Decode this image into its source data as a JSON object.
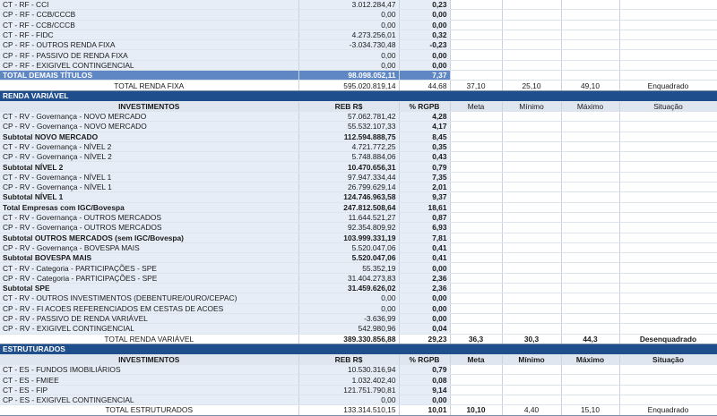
{
  "top_rows": [
    {
      "label": "CT - RF - CCI",
      "value": "3.012.284,47",
      "pct": "0,23"
    },
    {
      "label": "CP - RF - CCB/CCCB",
      "value": "0,00",
      "pct": "0,00"
    },
    {
      "label": "CT - RF - CCB/CCCB",
      "value": "0,00",
      "pct": "0,00"
    },
    {
      "label": "CT - RF - FIDC",
      "value": "4.273.256,01",
      "pct": "0,32"
    },
    {
      "label": "CP - RF - OUTROS RENDA FIXA",
      "value": "-3.034.730,48",
      "pct": "-0,23"
    },
    {
      "label": "CP - RF - PASSIVO DE RENDA FIXA",
      "value": "0,00",
      "pct": "0,00"
    },
    {
      "label": "CP - RF - EXIGIVEL CONTINGENCIAL",
      "value": "0,00",
      "pct": "0,00"
    }
  ],
  "total_demais": {
    "label": "TOTAL DEMAIS TÍTULOS",
    "value": "98.098.052,11",
    "pct": "7,37"
  },
  "total_rf": {
    "label": "TOTAL RENDA FIXA",
    "value": "595.020.819,14",
    "pct": "44,68",
    "meta": "37,10",
    "min": "25,10",
    "max": "49,10",
    "situacao": "Enquadrado"
  },
  "rv": {
    "section_title": "RENDA VARIÁVEL",
    "headers": {
      "investimentos": "INVESTIMENTOS",
      "reb": "REB R$",
      "pct": "% RGPB",
      "meta": "Meta",
      "min": "Mínimo",
      "max": "Máximo",
      "situacao": "Situação"
    },
    "rows": [
      {
        "label": "CT - RV - Governança - NOVO MERCADO",
        "value": "57.062.781,42",
        "pct": "4,28",
        "bold": false
      },
      {
        "label": "CP - RV - Governança - NOVO MERCADO",
        "value": "55.532.107,33",
        "pct": "4,17",
        "bold": false
      },
      {
        "label": "Subtotal NOVO MERCADO",
        "value": "112.594.888,75",
        "pct": "8,45",
        "bold": true
      },
      {
        "label": "CT - RV - Governança - NÍVEL 2",
        "value": "4.721.772,25",
        "pct": "0,35",
        "bold": false
      },
      {
        "label": "CP - RV - Governança - NÍVEL 2",
        "value": "5.748.884,06",
        "pct": "0,43",
        "bold": false
      },
      {
        "label": "Subtotal NÍVEL 2",
        "value": "10.470.656,31",
        "pct": "0,79",
        "bold": true
      },
      {
        "label": "CT - RV - Governança - NÍVEL 1",
        "value": "97.947.334,44",
        "pct": "7,35",
        "bold": false
      },
      {
        "label": "CP - RV - Governança - NÍVEL 1",
        "value": "26.799.629,14",
        "pct": "2,01",
        "bold": false
      },
      {
        "label": "Subtotal NÍVEL 1",
        "value": "124.746.963,58",
        "pct": "9,37",
        "bold": true
      },
      {
        "label": "Total Empresas com IGC/Bovespa",
        "value": "247.812.508,64",
        "pct": "18,61",
        "bold": true
      },
      {
        "label": "CT - RV - Governança - OUTROS MERCADOS",
        "value": "11.644.521,27",
        "pct": "0,87",
        "bold": false
      },
      {
        "label": "CP - RV - Governança - OUTROS MERCADOS",
        "value": "92.354.809,92",
        "pct": "6,93",
        "bold": false
      },
      {
        "label": "Subtotal OUTROS MERCADOS (sem IGC/Bovespa)",
        "value": "103.999.331,19",
        "pct": "7,81",
        "bold": true
      },
      {
        "label": "CP - RV - Governança - BOVESPA MAIS",
        "value": "5.520.047,06",
        "pct": "0,41",
        "bold": false
      },
      {
        "label": "Subtotal BOVESPA MAIS",
        "value": "5.520.047,06",
        "pct": "0,41",
        "bold": true
      },
      {
        "label": "CT - RV - Categoria - PARTICIPAÇÕES - SPE",
        "value": "55.352,19",
        "pct": "0,00",
        "bold": false
      },
      {
        "label": "CP - RV - Categoria - PARTICIPAÇÕES - SPE",
        "value": "31.404.273,83",
        "pct": "2,36",
        "bold": false
      },
      {
        "label": "Subtotal SPE",
        "value": "31.459.626,02",
        "pct": "2,36",
        "bold": true
      },
      {
        "label": "CT - RV - OUTROS INVESTIMENTOS (DEBENTURE/OURO/CEPAC)",
        "value": "0,00",
        "pct": "0,00",
        "bold": false
      },
      {
        "label": "CP - RV - FI ACOES REFERENCIADOS EM CESTAS DE ACOES",
        "value": "0,00",
        "pct": "0,00",
        "bold": false
      },
      {
        "label": "CP - RV - PASSIVO DE RENDA VARIÁVEL",
        "value": "-3.636,99",
        "pct": "0,00",
        "bold": false
      },
      {
        "label": "CP - RV - EXIGIVEL CONTINGENCIAL",
        "value": "542.980,96",
        "pct": "0,04",
        "bold": false
      }
    ],
    "total": {
      "label": "TOTAL RENDA VARIÁVEL",
      "value": "389.330.856,88",
      "pct": "29,23",
      "meta": "36,3",
      "min": "30,3",
      "max": "44,3",
      "situacao": "Desenquadrado"
    }
  },
  "es": {
    "section_title": "ESTRUTURADOS",
    "headers": {
      "investimentos": "INVESTIMENTOS",
      "reb": "REB R$",
      "pct": "% RGPB",
      "meta": "Meta",
      "min": "Mínimo",
      "max": "Máximo",
      "situacao": "Situação"
    },
    "rows": [
      {
        "label": "CT - ES - FUNDOS IMOBILIÁRIOS",
        "value": "10.530.316,94",
        "pct": "0,79",
        "bold": false
      },
      {
        "label": "CT - ES - FMIEE",
        "value": "1.032.402,40",
        "pct": "0,08",
        "bold": false
      },
      {
        "label": "CT - ES - FIP",
        "value": "121.751.790,81",
        "pct": "9,14",
        "bold": false
      },
      {
        "label": "CP - ES - EXIGIVEL CONTINGENCIAL",
        "value": "0,00",
        "pct": "0,00",
        "bold": false
      }
    ],
    "total": {
      "label": "TOTAL ESTRUTURADOS",
      "value": "133.314.510,15",
      "pct": "10,01",
      "meta": "10,10",
      "min": "4,40",
      "max": "15,10",
      "situacao": "Enquadrado"
    }
  }
}
